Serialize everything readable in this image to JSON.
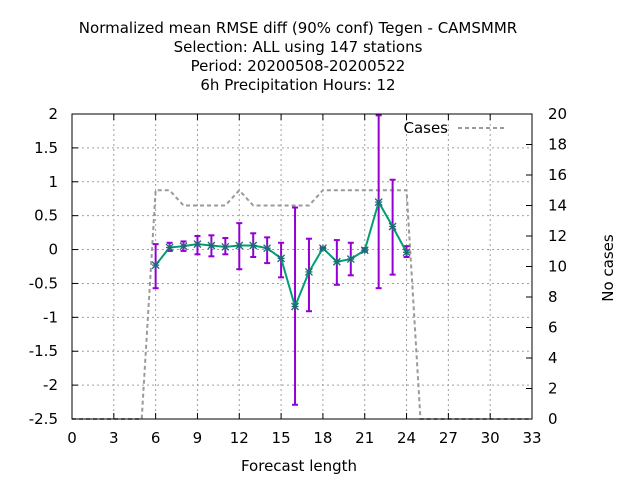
{
  "chart_data": {
    "type": "line",
    "title": [
      "Normalized mean RMSE diff (90% conf) Tegen - CAMSMMR",
      "Selection: ALL using   147 stations",
      "Period: 20200508-20200522",
      "6h Precipitation   Hours:  12"
    ],
    "xlabel": "Forecast length",
    "ylabel": "",
    "y2label": "No cases",
    "xlim": [
      0,
      33
    ],
    "ylim": [
      -2.5,
      2
    ],
    "y2lim": [
      0,
      20
    ],
    "xticks": [
      0,
      3,
      6,
      9,
      12,
      15,
      18,
      21,
      24,
      27,
      30,
      33
    ],
    "yticks": [
      "-2.5",
      "-2",
      "-1.5",
      "-1",
      "-0.5",
      "0",
      "0.5",
      "1",
      "1.5",
      "2"
    ],
    "y2ticks": [
      0,
      2,
      4,
      6,
      8,
      10,
      12,
      14,
      16,
      18,
      20
    ],
    "grid": true,
    "legend_position": "top-right",
    "series": [
      {
        "name": "",
        "axis": "left",
        "color": "#009e73",
        "x": [
          6,
          7,
          8,
          9,
          10,
          11,
          12,
          13,
          14,
          15,
          16,
          17,
          18,
          19,
          20,
          21,
          22,
          23,
          24
        ],
        "y": [
          -0.23,
          0.03,
          0.05,
          0.08,
          0.06,
          0.04,
          0.06,
          0.06,
          0.02,
          -0.13,
          -0.84,
          -0.33,
          0.02,
          -0.18,
          -0.14,
          -0.01,
          0.7,
          0.34,
          -0.04
        ],
        "err_low": [
          -0.57,
          -0.02,
          -0.02,
          -0.07,
          -0.1,
          -0.07,
          -0.29,
          -0.11,
          -0.2,
          -0.41,
          -2.29,
          -0.91,
          0.01,
          -0.52,
          -0.38,
          -0.03,
          -0.57,
          -0.37,
          -0.11
        ],
        "err_high": [
          0.08,
          0.1,
          0.12,
          0.2,
          0.21,
          0.17,
          0.39,
          0.24,
          0.18,
          0.1,
          0.62,
          0.16,
          0.03,
          0.14,
          0.1,
          0.02,
          1.98,
          1.03,
          0.05
        ]
      },
      {
        "name": "Cases",
        "axis": "right",
        "color": "#9a9a9a",
        "style": "dashed",
        "x": [
          0,
          5,
          6,
          7,
          8,
          9,
          10,
          11,
          12,
          13,
          14,
          15,
          16,
          17,
          18,
          19,
          20,
          21,
          22,
          23,
          24,
          25,
          33
        ],
        "y": [
          0,
          0,
          15,
          15,
          14,
          14,
          14,
          14,
          15,
          14,
          14,
          14,
          14,
          14,
          15,
          15,
          15,
          15,
          15,
          15,
          15,
          0,
          0
        ]
      }
    ]
  }
}
